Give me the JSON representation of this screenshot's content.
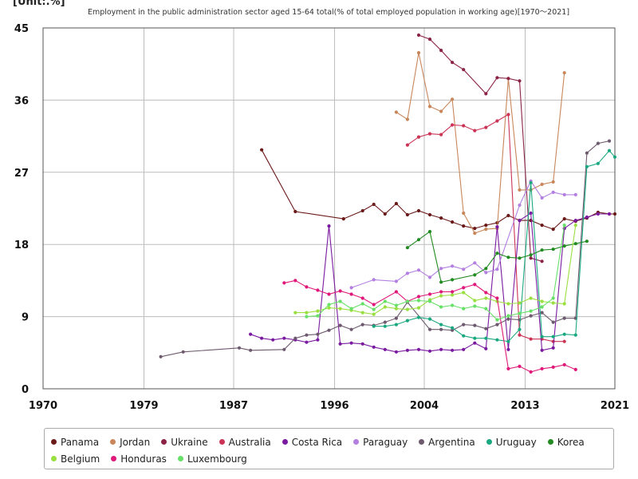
{
  "chart_data": {
    "type": "line",
    "unit_label": "[Unit:.%]",
    "title": "Employment in the public administration sector aged 15-64 total(% of total employed population in working age)[1970～2021]",
    "xlim": [
      1970,
      2021
    ],
    "ylim": [
      0,
      45
    ],
    "x_ticks": [
      1970,
      1979,
      1987,
      1996,
      2004,
      2013,
      2021
    ],
    "y_ticks": [
      0,
      9,
      18,
      27,
      36,
      45
    ],
    "grid": true,
    "legend_position": "bottom",
    "series": [
      {
        "name": "Panama",
        "color": "#6b1a1a",
        "points": [
          [
            1989.5,
            29.8
          ],
          [
            1992.5,
            22.1
          ],
          [
            1996.8,
            21.2
          ],
          [
            1998.5,
            22.2
          ],
          [
            1999.5,
            23.0
          ],
          [
            2000.5,
            21.8
          ],
          [
            2001.5,
            23.1
          ],
          [
            2002.5,
            21.7
          ],
          [
            2003.5,
            22.2
          ],
          [
            2004.5,
            21.7
          ],
          [
            2005.5,
            21.3
          ],
          [
            2006.5,
            20.8
          ],
          [
            2007.5,
            20.3
          ],
          [
            2008.5,
            20.0
          ],
          [
            2009.5,
            20.4
          ],
          [
            2010.5,
            20.7
          ],
          [
            2011.5,
            21.6
          ],
          [
            2012.5,
            21.0
          ],
          [
            2013.5,
            21.0
          ],
          [
            2014.5,
            20.4
          ],
          [
            2015.5,
            19.9
          ],
          [
            2016.5,
            21.2
          ],
          [
            2017.5,
            20.9
          ],
          [
            2018.5,
            21.3
          ],
          [
            2019.5,
            22.0
          ],
          [
            2020.5,
            21.8
          ],
          [
            2021,
            21.8
          ]
        ]
      },
      {
        "name": "Jordan",
        "color": "#c8865a",
        "points": [
          [
            2001.5,
            34.5
          ],
          [
            2002.5,
            33.6
          ],
          [
            2003.5,
            41.9
          ],
          [
            2004.5,
            35.2
          ],
          [
            2005.5,
            34.6
          ],
          [
            2006.5,
            36.1
          ],
          [
            2007.5,
            21.9
          ],
          [
            2008.5,
            19.4
          ],
          [
            2009.5,
            19.9
          ],
          [
            2010.5,
            20.0
          ],
          [
            2011.5,
            38.7
          ],
          [
            2012.5,
            24.8
          ],
          [
            2013.5,
            24.8
          ],
          [
            2014.5,
            25.5
          ],
          [
            2015.5,
            25.8
          ],
          [
            2016.5,
            39.4
          ]
        ]
      },
      {
        "name": "Ukraine",
        "color": "#8b2346",
        "points": [
          [
            2003.5,
            44.1
          ],
          [
            2004.5,
            43.6
          ],
          [
            2005.5,
            42.2
          ],
          [
            2006.5,
            40.7
          ],
          [
            2007.5,
            39.8
          ],
          [
            2009.5,
            36.8
          ],
          [
            2010.5,
            38.8
          ],
          [
            2011.5,
            38.7
          ],
          [
            2012.5,
            38.4
          ],
          [
            2013.5,
            16.3
          ],
          [
            2014.5,
            15.9
          ]
        ]
      },
      {
        "name": "Australia",
        "color": "#cc3355",
        "points": [
          [
            2002.5,
            30.4
          ],
          [
            2003.5,
            31.4
          ],
          [
            2004.5,
            31.8
          ],
          [
            2005.5,
            31.7
          ],
          [
            2006.5,
            32.9
          ],
          [
            2007.5,
            32.8
          ],
          [
            2008.5,
            32.2
          ],
          [
            2009.5,
            32.6
          ],
          [
            2010.5,
            33.4
          ],
          [
            2011.5,
            34.2
          ],
          [
            2012.5,
            6.7
          ],
          [
            2013.5,
            6.2
          ],
          [
            2014.5,
            6.2
          ],
          [
            2015.5,
            5.9
          ],
          [
            2016.5,
            5.9
          ]
        ]
      },
      {
        "name": "Costa Rica",
        "color": "#7a1aa0",
        "points": [
          [
            1988.5,
            6.8
          ],
          [
            1989.5,
            6.3
          ],
          [
            1990.5,
            6.1
          ],
          [
            1991.5,
            6.3
          ],
          [
            1992.5,
            6.1
          ],
          [
            1993.5,
            5.8
          ],
          [
            1994.5,
            6.1
          ],
          [
            1995.5,
            20.3
          ],
          [
            1996.5,
            5.6
          ],
          [
            1997.5,
            5.7
          ],
          [
            1998.5,
            5.6
          ],
          [
            1999.5,
            5.2
          ],
          [
            2000.5,
            4.9
          ],
          [
            2001.5,
            4.6
          ],
          [
            2002.5,
            4.8
          ],
          [
            2003.5,
            4.9
          ],
          [
            2004.5,
            4.7
          ],
          [
            2005.5,
            4.9
          ],
          [
            2006.5,
            4.8
          ],
          [
            2007.5,
            4.9
          ],
          [
            2008.5,
            5.7
          ],
          [
            2009.5,
            5.0
          ],
          [
            2010.5,
            20.2
          ],
          [
            2011.5,
            4.9
          ],
          [
            2012.5,
            21.0
          ],
          [
            2013.5,
            21.9
          ],
          [
            2014.5,
            4.8
          ],
          [
            2015.5,
            5.1
          ],
          [
            2016.5,
            20.0
          ],
          [
            2017.5,
            21.0
          ],
          [
            2018.5,
            21.4
          ],
          [
            2019.5,
            21.8
          ],
          [
            2020.5,
            21.8
          ]
        ]
      },
      {
        "name": "Paraguay",
        "color": "#b37fe0",
        "points": [
          [
            1997.5,
            12.6
          ],
          [
            1999.5,
            13.6
          ],
          [
            2001.5,
            13.4
          ],
          [
            2002.5,
            14.4
          ],
          [
            2003.5,
            14.8
          ],
          [
            2004.5,
            13.9
          ],
          [
            2005.5,
            15.0
          ],
          [
            2006.5,
            15.3
          ],
          [
            2007.5,
            14.9
          ],
          [
            2008.5,
            15.7
          ],
          [
            2009.5,
            14.5
          ],
          [
            2010.5,
            14.9
          ],
          [
            2012.5,
            22.9
          ],
          [
            2013.5,
            25.9
          ],
          [
            2014.5,
            23.8
          ],
          [
            2015.5,
            24.5
          ],
          [
            2016.5,
            24.2
          ],
          [
            2017.5,
            24.2
          ]
        ]
      },
      {
        "name": "Argentina",
        "color": "#6e5a6e",
        "points": [
          [
            1980.5,
            4.0
          ],
          [
            1982.5,
            4.6
          ],
          [
            1987.5,
            5.1
          ],
          [
            1988.5,
            4.8
          ],
          [
            1991.5,
            4.9
          ],
          [
            1992.5,
            6.3
          ],
          [
            1993.5,
            6.7
          ],
          [
            1994.5,
            6.8
          ],
          [
            1995.5,
            7.3
          ],
          [
            1996.5,
            7.9
          ],
          [
            1997.5,
            7.4
          ],
          [
            1998.5,
            8.0
          ],
          [
            1999.5,
            7.9
          ],
          [
            2000.5,
            8.3
          ],
          [
            2001.5,
            8.8
          ],
          [
            2002.5,
            10.8
          ],
          [
            2004.5,
            7.4
          ],
          [
            2005.5,
            7.4
          ],
          [
            2006.5,
            7.3
          ],
          [
            2007.5,
            8.0
          ],
          [
            2008.5,
            7.9
          ],
          [
            2009.5,
            7.5
          ],
          [
            2010.5,
            8.0
          ],
          [
            2011.5,
            8.7
          ],
          [
            2012.5,
            8.6
          ],
          [
            2013.5,
            9.1
          ],
          [
            2014.5,
            9.5
          ],
          [
            2015.5,
            8.3
          ],
          [
            2016.5,
            8.8
          ],
          [
            2017.5,
            8.8
          ],
          [
            2018.5,
            29.4
          ],
          [
            2019.5,
            30.6
          ],
          [
            2020.5,
            30.9
          ]
        ]
      },
      {
        "name": "Uruguay",
        "color": "#1aa880",
        "points": [
          [
            1999.5,
            7.8
          ],
          [
            2000.5,
            7.8
          ],
          [
            2001.5,
            8.0
          ],
          [
            2002.5,
            8.5
          ],
          [
            2003.5,
            8.9
          ],
          [
            2004.5,
            8.7
          ],
          [
            2005.5,
            8.0
          ],
          [
            2006.5,
            7.6
          ],
          [
            2007.5,
            6.6
          ],
          [
            2008.5,
            6.3
          ],
          [
            2009.5,
            6.3
          ],
          [
            2010.5,
            6.1
          ],
          [
            2011.5,
            5.9
          ],
          [
            2012.5,
            7.4
          ],
          [
            2013.5,
            25.7
          ],
          [
            2014.5,
            6.5
          ],
          [
            2015.5,
            6.5
          ],
          [
            2016.5,
            6.8
          ],
          [
            2017.5,
            6.7
          ],
          [
            2018.5,
            27.7
          ],
          [
            2019.5,
            28.1
          ],
          [
            2020.5,
            29.7
          ],
          [
            2021,
            28.9
          ]
        ]
      },
      {
        "name": "Korea",
        "color": "#228b22",
        "points": [
          [
            2002.5,
            17.6
          ],
          [
            2003.5,
            18.6
          ],
          [
            2004.5,
            19.6
          ],
          [
            2005.5,
            13.3
          ],
          [
            2006.5,
            13.6
          ],
          [
            2008.5,
            14.2
          ],
          [
            2009.5,
            15.0
          ],
          [
            2010.5,
            16.9
          ],
          [
            2011.5,
            16.4
          ],
          [
            2012.5,
            16.3
          ],
          [
            2013.5,
            16.7
          ],
          [
            2014.5,
            17.3
          ],
          [
            2015.5,
            17.4
          ],
          [
            2016.5,
            17.8
          ],
          [
            2017.5,
            18.1
          ],
          [
            2018.5,
            18.4
          ]
        ]
      },
      {
        "name": "Belgium",
        "color": "#9adf40",
        "points": [
          [
            1992.5,
            9.5
          ],
          [
            1993.5,
            9.5
          ],
          [
            1994.5,
            9.7
          ],
          [
            1995.5,
            10.1
          ],
          [
            1996.5,
            10.0
          ],
          [
            1997.5,
            9.8
          ],
          [
            1998.5,
            9.5
          ],
          [
            1999.5,
            9.3
          ],
          [
            2000.5,
            10.2
          ],
          [
            2001.5,
            10.0
          ],
          [
            2002.5,
            9.9
          ],
          [
            2003.5,
            10.1
          ],
          [
            2004.5,
            11.1
          ],
          [
            2005.5,
            11.6
          ],
          [
            2006.5,
            11.7
          ],
          [
            2007.5,
            12.0
          ],
          [
            2008.5,
            11.0
          ],
          [
            2009.5,
            11.3
          ],
          [
            2010.5,
            10.9
          ],
          [
            2011.5,
            10.6
          ],
          [
            2012.5,
            10.7
          ],
          [
            2013.5,
            11.3
          ],
          [
            2014.5,
            10.9
          ],
          [
            2015.5,
            10.7
          ],
          [
            2016.5,
            10.6
          ],
          [
            2017.5,
            20.4
          ]
        ]
      },
      {
        "name": "Honduras",
        "color": "#e0187a",
        "points": [
          [
            1991.5,
            13.2
          ],
          [
            1992.5,
            13.5
          ],
          [
            1993.5,
            12.7
          ],
          [
            1994.5,
            12.3
          ],
          [
            1995.5,
            11.8
          ],
          [
            1996.5,
            12.2
          ],
          [
            1997.5,
            11.8
          ],
          [
            1998.5,
            11.3
          ],
          [
            1999.5,
            10.5
          ],
          [
            2001.5,
            12.1
          ],
          [
            2002.5,
            10.9
          ],
          [
            2003.5,
            11.5
          ],
          [
            2004.5,
            11.8
          ],
          [
            2005.5,
            12.1
          ],
          [
            2006.5,
            12.1
          ],
          [
            2007.5,
            12.6
          ],
          [
            2008.5,
            13.0
          ],
          [
            2009.5,
            12.0
          ],
          [
            2010.5,
            11.3
          ],
          [
            2011.5,
            2.5
          ],
          [
            2012.5,
            2.8
          ],
          [
            2013.5,
            2.1
          ],
          [
            2014.5,
            2.5
          ],
          [
            2015.5,
            2.7
          ],
          [
            2016.5,
            3.0
          ],
          [
            2017.5,
            2.4
          ]
        ]
      },
      {
        "name": "Luxembourg",
        "color": "#66e066",
        "points": [
          [
            1993.5,
            9.0
          ],
          [
            1994.5,
            9.1
          ],
          [
            1995.5,
            10.5
          ],
          [
            1996.5,
            10.9
          ],
          [
            1997.5,
            10.0
          ],
          [
            1998.5,
            10.6
          ],
          [
            1999.5,
            9.9
          ],
          [
            2000.5,
            10.9
          ],
          [
            2001.5,
            10.4
          ],
          [
            2002.5,
            10.9
          ],
          [
            2003.5,
            11.0
          ],
          [
            2004.5,
            10.9
          ],
          [
            2005.5,
            10.2
          ],
          [
            2006.5,
            10.4
          ],
          [
            2007.5,
            10.0
          ],
          [
            2008.5,
            10.3
          ],
          [
            2009.5,
            10.0
          ],
          [
            2010.5,
            8.6
          ],
          [
            2011.5,
            9.1
          ],
          [
            2012.5,
            9.4
          ],
          [
            2013.5,
            9.7
          ],
          [
            2014.5,
            10.2
          ],
          [
            2015.5,
            11.3
          ],
          [
            2016.5,
            20.4
          ]
        ]
      }
    ]
  }
}
